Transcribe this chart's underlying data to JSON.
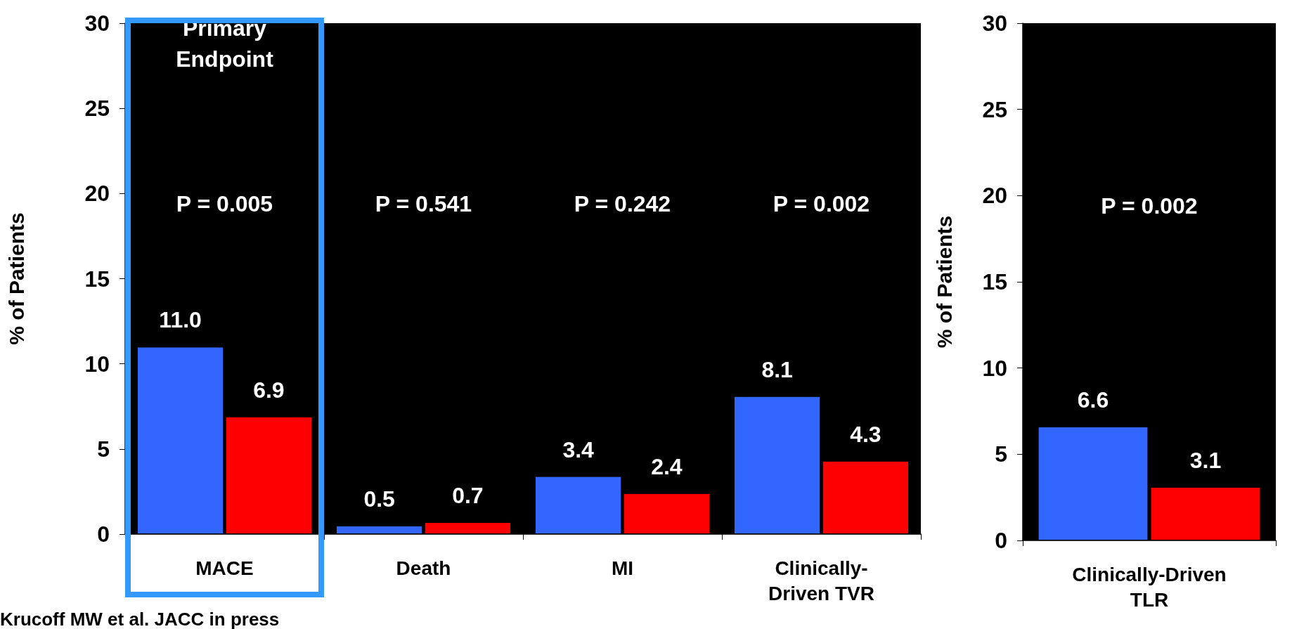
{
  "chart_data": [
    {
      "type": "bar",
      "ylabel": "% of Patients",
      "ylim": [
        0,
        30
      ],
      "yticks": [
        0,
        5,
        10,
        15,
        20,
        25,
        30
      ],
      "grid": false,
      "categories": [
        "MACE",
        "Death",
        "MI",
        "Clinically-\nDriven TVR"
      ],
      "series": [
        {
          "color": "#3366ff",
          "values": [
            11.0,
            0.5,
            3.4,
            8.1
          ],
          "value_labels": [
            "11.0",
            "0.5",
            "3.4",
            "8.1"
          ]
        },
        {
          "color": "#ff0000",
          "values": [
            6.9,
            0.7,
            2.4,
            4.3
          ],
          "value_labels": [
            "6.9",
            "0.7",
            "2.4",
            "4.3"
          ]
        }
      ],
      "annotations": [
        "Primary\nEndpoint",
        "P = 0.005",
        "P = 0.541",
        "P = 0.242",
        "P = 0.002",
        "Krucoff MW et al. JACC in press"
      ]
    },
    {
      "type": "bar",
      "ylabel": "% of Patients",
      "ylim": [
        0,
        30
      ],
      "yticks": [
        0,
        5,
        10,
        15,
        20,
        25,
        30
      ],
      "grid": false,
      "categories": [
        "Clinically-Driven\nTLR"
      ],
      "series": [
        {
          "color": "#3366ff",
          "values": [
            6.6
          ],
          "value_labels": [
            "6.6"
          ]
        },
        {
          "color": "#ff0000",
          "values": [
            3.1
          ],
          "value_labels": [
            "3.1"
          ]
        }
      ],
      "annotations": [
        "P = 0.002"
      ]
    }
  ]
}
